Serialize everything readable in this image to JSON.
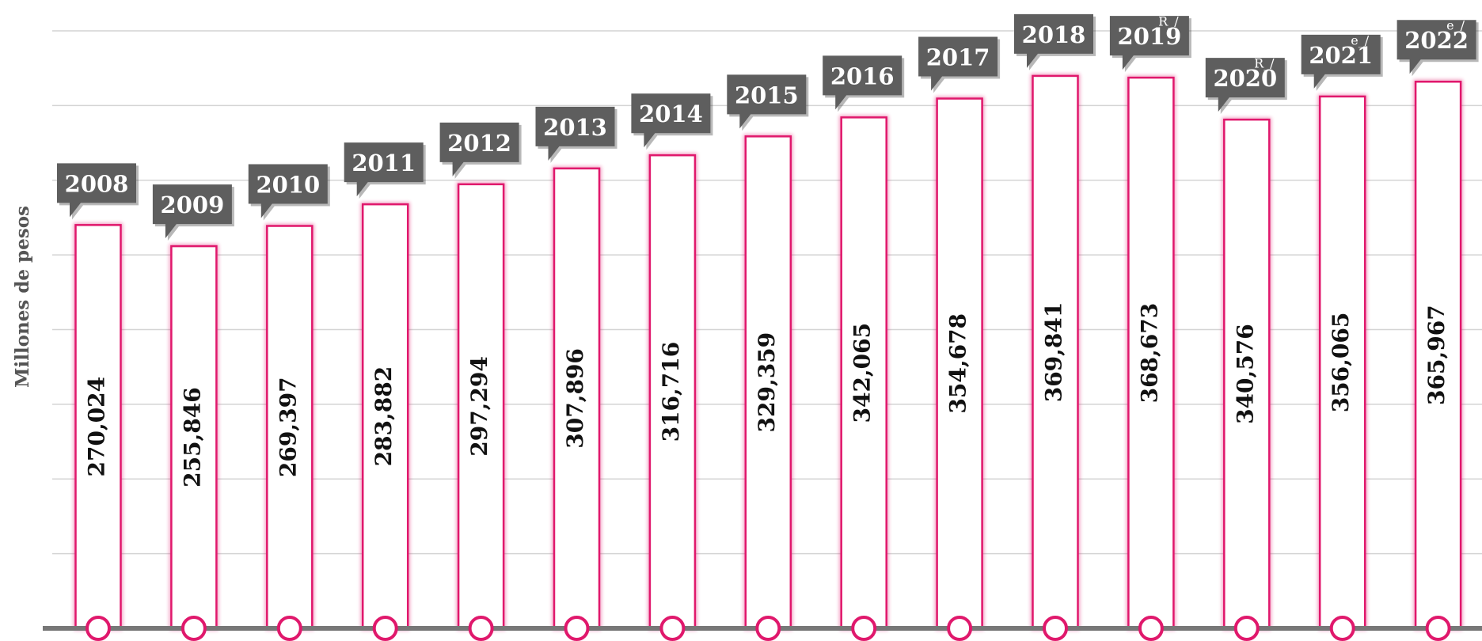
{
  "chart_data": {
    "type": "bar",
    "y_label": "Millones de pesos",
    "categories": [
      "2008",
      "2009",
      "2010",
      "2011",
      "2012",
      "2013",
      "2014",
      "2015",
      "2016",
      "2017",
      "2018",
      "2019",
      "2020",
      "2021",
      "2022"
    ],
    "notes": [
      null,
      null,
      null,
      null,
      null,
      null,
      null,
      null,
      null,
      null,
      null,
      "R_/",
      "R_/",
      "e_/",
      "e_/"
    ],
    "values": [
      270024,
      255846,
      269397,
      283882,
      297294,
      307896,
      316716,
      329359,
      342065,
      354678,
      369841,
      368673,
      340576,
      356065,
      365967
    ],
    "value_labels": [
      "270,024",
      "255,846",
      "269,397",
      "283,882",
      "297,294",
      "307,896",
      "316,716",
      "329,359",
      "342,065",
      "354,678",
      "369,841",
      "368,673",
      "340,576",
      "356,065",
      "365,967"
    ],
    "color": "#e0186c",
    "ylim": [
      0,
      400000
    ],
    "yticks": [
      0,
      50000,
      100000,
      150000,
      200000,
      250000,
      300000,
      350000,
      400000
    ],
    "grid": true
  }
}
